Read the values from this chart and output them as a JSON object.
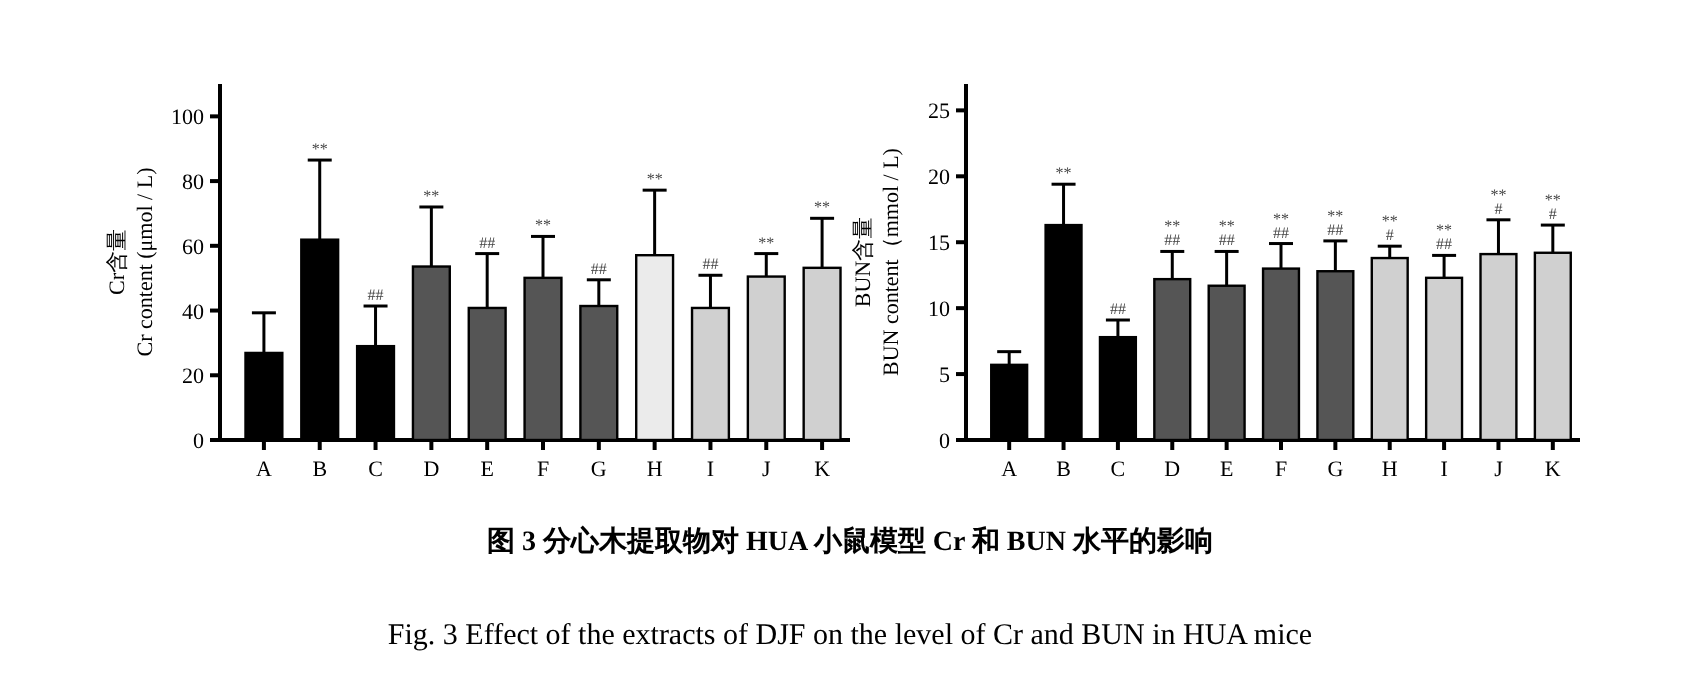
{
  "chart_data": [
    {
      "type": "bar",
      "ylabel": "Cr含量\nCr content (μmol / L)",
      "categories": [
        "A",
        "B",
        "C",
        "D",
        "E",
        "F",
        "G",
        "H",
        "I",
        "J",
        "K"
      ],
      "values": [
        26.9,
        61.9,
        29.0,
        53.6,
        40.8,
        50.1,
        41.4,
        57.1,
        40.8,
        50.5,
        53.2
      ],
      "errors": [
        12.4,
        24.6,
        12.4,
        18.4,
        16.8,
        12.8,
        8.1,
        20.1,
        10.1,
        7.1,
        15.3
      ],
      "colors": [
        "#000000",
        "#000000",
        "#000000",
        "#555555",
        "#555555",
        "#555555",
        "#555555",
        "#ebebeb",
        "#d0d0d0",
        "#d0d0d0",
        "#d0d0d0"
      ],
      "ylim": [
        0,
        110
      ],
      "yticks": [
        0,
        20,
        40,
        60,
        80,
        100
      ],
      "annotations": [
        "图 3  分心木提取物对 HUA 小鼠模型 Cr 和 BUN 水平的影响",
        "Fig. 3 Effect of the extracts of DJF on the level of Cr and BUN in HUA mice",
        {
          "text": "**",
          "x": "B",
          "y": 86.5
        },
        {
          "text": "##",
          "x": "C",
          "y": 41.4
        },
        {
          "text": "**",
          "x": "D",
          "y": 72.0
        },
        {
          "text": "##",
          "x": "E",
          "y": 57.6
        },
        {
          "text": "**",
          "x": "F",
          "y": 62.9
        },
        {
          "text": "##",
          "x": "G",
          "y": 49.5
        },
        {
          "text": "**",
          "x": "H",
          "y": 77.2
        },
        {
          "text": "##",
          "x": "I",
          "y": 50.9
        },
        {
          "text": "**",
          "x": "J",
          "y": 57.6
        },
        {
          "text": "**",
          "x": "K",
          "y": 68.5
        }
      ]
    },
    {
      "type": "bar",
      "ylabel": "BUN含量\nBUN content（mmol / L)",
      "categories": [
        "A",
        "B",
        "C",
        "D",
        "E",
        "F",
        "G",
        "H",
        "I",
        "J",
        "K"
      ],
      "values": [
        5.7,
        16.3,
        7.8,
        12.2,
        11.7,
        13.0,
        12.8,
        13.8,
        12.3,
        14.1,
        14.2
      ],
      "errors": [
        1.0,
        3.1,
        1.3,
        2.1,
        2.6,
        1.9,
        2.3,
        0.9,
        1.7,
        2.6,
        2.1
      ],
      "colors": [
        "#000000",
        "#000000",
        "#000000",
        "#555555",
        "#555555",
        "#555555",
        "#555555",
        "#d0d0d0",
        "#d0d0d0",
        "#d0d0d0",
        "#d0d0d0"
      ],
      "ylim": [
        0,
        27
      ],
      "yticks": [
        0,
        5,
        10,
        15,
        20,
        25
      ],
      "annotations": [
        {
          "text": "**",
          "x": "B",
          "y": 19.4
        },
        {
          "text": "##",
          "x": "C",
          "y": 9.1
        },
        {
          "text": "**\n##",
          "x": "D",
          "y": 14.3
        },
        {
          "text": "**\n##",
          "x": "E",
          "y": 14.3
        },
        {
          "text": "**\n##",
          "x": "F",
          "y": 14.9
        },
        {
          "text": "**\n##",
          "x": "G",
          "y": 15.1
        },
        {
          "text": "**\n#",
          "x": "H",
          "y": 14.7
        },
        {
          "text": "**\n##",
          "x": "I",
          "y": 14.0
        },
        {
          "text": "**\n#",
          "x": "J",
          "y": 16.7
        },
        {
          "text": "**\n#",
          "x": "K",
          "y": 16.3
        }
      ]
    }
  ]
}
